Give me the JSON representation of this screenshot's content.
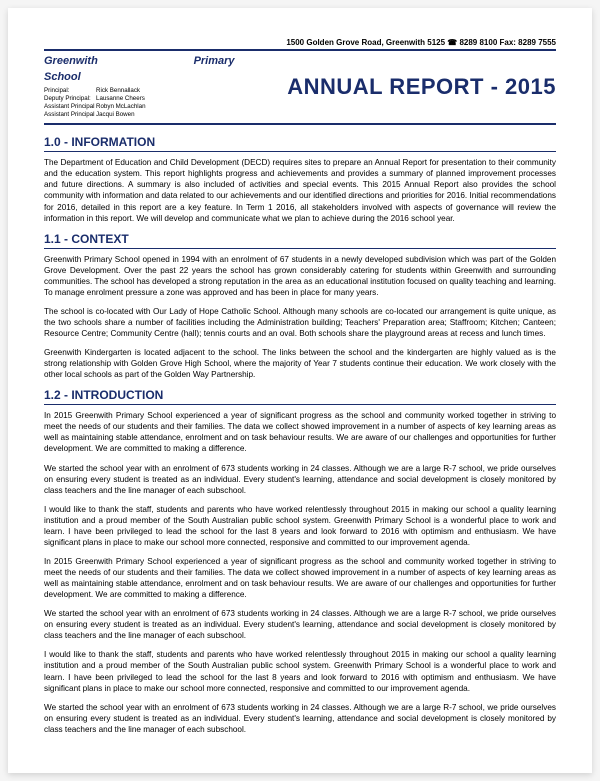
{
  "header": {
    "address": "1500 Golden Grove Road, Greenwith 5125  ☎ 8289 8100  Fax: 8289 7555",
    "school_line1": "Greenwith",
    "school_line2": "Primary",
    "school_line3": "School",
    "report_title": "ANNUAL REPORT  -  2015",
    "staff": [
      {
        "role": "Principal:",
        "name": "Rick Bennallack"
      },
      {
        "role": "Deputy Principal:",
        "name": "Lausanne Cheers"
      },
      {
        "role": "Assistant Principal",
        "name": "Robyn McLachlan"
      },
      {
        "role": "Assistant Principal",
        "name": "Jacqui Bowen"
      }
    ]
  },
  "sections": {
    "s1": {
      "heading": "1.0 - INFORMATION",
      "p1": "The Department of Education and Child Development (DECD) requires sites to prepare an Annual Report for presentation to their community and the education system.  This report highlights progress and achievements and provides a summary of planned improvement processes and future directions.  A summary is also included of activities and special events.  This 2015 Annual Report also provides the school community with information and data related to our achievements and our identified directions and priorities for 2016. Initial recommendations for 2016, detailed in this report are a key feature.  In Term 1 2016, all stakeholders involved with aspects of governance will review the information in this report.  We will develop and communicate what we plan to achieve during the 2016 school year."
    },
    "s2": {
      "heading": "1.1 - CONTEXT",
      "p1": "Greenwith Primary School opened in 1994 with an enrolment of 67 students in a newly developed subdivision which was part of the Golden Grove Development.  Over the past 22 years the school has grown considerably catering for students within Greenwith and surrounding communities.  The school has developed a strong reputation in the area as an educational institution focused on quality teaching and learning.  To manage enrolment pressure a zone was approved and has been in place for many years.",
      "p2": "The school is co-located with Our Lady of Hope Catholic School. Although many schools are co-located our arrangement is quite unique, as the two schools share a number of facilities including the Administration building; Teachers' Preparation area; Staffroom; Kitchen; Canteen; Resource Centre; Community Centre (hall); tennis courts and an oval.  Both schools share the playground areas at recess and lunch times.",
      "p3": "Greenwith Kindergarten is located adjacent to the school. The links between the school and the kindergarten are highly valued as is the strong relationship with Golden Grove High School, where the majority of Year 7 students continue their education.  We work closely with the other local schools as part of the Golden Way Partnership."
    },
    "s3": {
      "heading": "1.2 - INTRODUCTION",
      "p1": "In 2015 Greenwith Primary School experienced a year of significant progress as the school and community worked together in striving to meet the needs of our students and their families.  The data we collect showed improvement in a number of aspects of key learning areas as well as maintaining stable attendance, enrolment and on task behaviour results.  We are aware of our challenges and opportunities for further development.  We are committed to making a difference.",
      "p2": "We started the school year with an enrolment of 673 students working in 24 classes.  Although we are a large R-7 school, we pride ourselves on ensuring every student is treated as an individual.  Every student's learning, attendance and social development is closely monitored by class teachers and the line manager of each subschool.",
      "p3": "I would like to thank the staff, students and parents who have worked relentlessly throughout 2015 in making our school a quality learning institution and a proud member of the South Australian public school system.  Greenwith Primary School is a wonderful place to work and learn.  I have been privileged to lead the school for the last 8 years and look forward to 2016 with optimism and enthusiasm.  We have significant plans in place to make our school more connected, responsive and committed to our improvement agenda.",
      "p4": "In 2015 Greenwith Primary School experienced a year of significant progress as the school and community worked together in striving to meet the needs of our students and their families.  The data we collect showed improvement in a number of aspects of key learning areas as well as maintaining stable attendance, enrolment and on task behaviour results.  We are aware of our challenges and opportunities for further development.  We are committed to making a difference.",
      "p5": "We started the school year with an enrolment of 673 students working in 24 classes.  Although we are a large R-7 school, we pride ourselves on ensuring every student is treated as an individual.  Every student's learning, attendance and social development is closely monitored by class teachers and the line manager of each subschool.",
      "p6": "I would like to thank the staff, students and parents who have worked relentlessly throughout 2015 in making our school a quality learning institution and a proud member of the South Australian public school system.  Greenwith Primary School is a wonderful place to work and learn.  I have been privileged to lead the school for the last 8 years and look forward to 2016 with optimism and enthusiasm.  We have significant plans in place to make our school more connected, responsive and committed to our improvement agenda.",
      "p7": "We started the school year with an enrolment of 673 students working in 24 classes.  Although we are a large R-7 school, we pride ourselves on ensuring every student is treated as an individual.  Every student's learning, attendance and social development is closely monitored by class teachers and the line manager of each subschool."
    }
  },
  "colors": {
    "primary": "#1a2d6b",
    "text": "#000000",
    "page_bg": "#ffffff",
    "outer_bg": "#f5f5f5"
  }
}
